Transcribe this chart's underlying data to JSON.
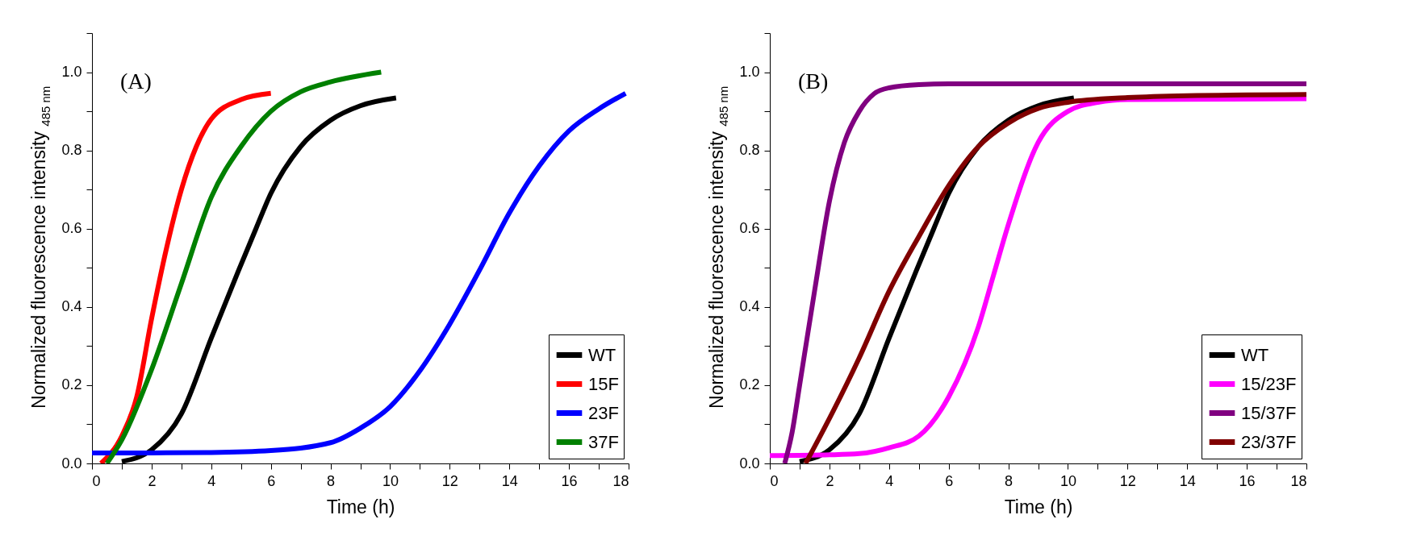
{
  "chart_data": [
    {
      "type": "line",
      "title": "(A)",
      "xlabel": "Time (h)",
      "ylabel": "Normalized fluorescence intensity $_{485 nm}$",
      "xlim": [
        0,
        18
      ],
      "ylim": [
        0,
        1.1
      ],
      "xticks": [
        0,
        {
          "value": 1,
          "label": null
        },
        2,
        {
          "value": 3,
          "label": null
        },
        4,
        {
          "value": 5,
          "label": null
        },
        6,
        {
          "value": 7,
          "label": null
        },
        8,
        {
          "value": 9,
          "label": null
        },
        10,
        {
          "value": 11,
          "label": null
        },
        12,
        {
          "value": 13,
          "label": null
        },
        14,
        {
          "value": 15,
          "label": null
        },
        16,
        {
          "value": 17,
          "label": null
        },
        18
      ],
      "yticks": [
        {
          "value": 0,
          "label": "0.0"
        },
        {
          "value": 0.1,
          "label": null
        },
        0.2,
        {
          "value": 0.3,
          "label": null
        },
        0.4,
        {
          "value": 0.5,
          "label": null
        },
        0.6,
        {
          "value": 0.7,
          "label": null
        },
        0.8,
        {
          "value": 0.9,
          "label": null
        },
        {
          "value": 1,
          "label": "1.0"
        },
        {
          "value": 1.1,
          "label": null
        }
      ],
      "grid": false,
      "legend": "bottom right",
      "marker": "none",
      "line_style": "solid",
      "series": [
        {
          "name": "WT",
          "color": "#000000",
          "x": [
            1,
            2,
            3,
            4,
            4.9,
            5.5,
            6,
            7,
            8,
            9,
            10.2
          ],
          "values": [
            0.005,
            0.035,
            0.127,
            0.32,
            0.49,
            0.6,
            0.69,
            0.81,
            0.877,
            0.914,
            0.934
          ]
        },
        {
          "name": "15F",
          "color": "#ff0000",
          "x": [
            0.3,
            1,
            1.5,
            2,
            2.5,
            3,
            3.5,
            4,
            5,
            6
          ],
          "values": [
            0,
            0.07,
            0.17,
            0.37,
            0.55,
            0.7,
            0.81,
            0.88,
            0.93,
            0.946
          ]
        },
        {
          "name": "23F",
          "color": "#0000ff",
          "x": [
            0,
            2,
            4,
            6,
            8,
            9,
            10,
            11,
            12,
            13,
            14,
            15,
            16,
            17,
            17.9
          ],
          "values": [
            0.027,
            0.027,
            0.028,
            0.033,
            0.053,
            0.09,
            0.145,
            0.237,
            0.356,
            0.494,
            0.64,
            0.76,
            0.85,
            0.906,
            0.946
          ]
        },
        {
          "name": "37F",
          "color": "#008000",
          "x": [
            0.5,
            1,
            2,
            3,
            4,
            5,
            6,
            7,
            8,
            9.7
          ],
          "values": [
            0,
            0.06,
            0.24,
            0.46,
            0.68,
            0.81,
            0.9,
            0.95,
            0.975,
            1.0
          ]
        }
      ]
    },
    {
      "type": "line",
      "title": "(B)",
      "xlabel": "Time (h)",
      "ylabel": "Normalized fluorescence intensity $_{485 nm}$",
      "xlim": [
        0,
        18
      ],
      "ylim": [
        0,
        1.1
      ],
      "xticks": [
        0,
        {
          "value": 1,
          "label": null
        },
        2,
        {
          "value": 3,
          "label": null
        },
        4,
        {
          "value": 5,
          "label": null
        },
        6,
        {
          "value": 7,
          "label": null
        },
        8,
        {
          "value": 9,
          "label": null
        },
        10,
        {
          "value": 11,
          "label": null
        },
        12,
        {
          "value": 13,
          "label": null
        },
        14,
        {
          "value": 15,
          "label": null
        },
        16,
        {
          "value": 17,
          "label": null
        },
        18
      ],
      "yticks": [
        {
          "value": 0,
          "label": "0.0"
        },
        {
          "value": 0.1,
          "label": null
        },
        0.2,
        {
          "value": 0.3,
          "label": null
        },
        0.4,
        {
          "value": 0.5,
          "label": null
        },
        0.6,
        {
          "value": 0.7,
          "label": null
        },
        0.8,
        {
          "value": 0.9,
          "label": null
        },
        {
          "value": 1,
          "label": "1.0"
        },
        {
          "value": 1.1,
          "label": null
        }
      ],
      "grid": false,
      "legend": "bottom right",
      "marker": "none",
      "line_style": "solid",
      "series": [
        {
          "name": "WT",
          "color": "#000000",
          "x": [
            1,
            2,
            3,
            4,
            4.9,
            5.5,
            6,
            7,
            8,
            9,
            10.2
          ],
          "values": [
            0.005,
            0.035,
            0.127,
            0.32,
            0.49,
            0.6,
            0.69,
            0.81,
            0.877,
            0.914,
            0.934
          ]
        },
        {
          "name": "15/23F",
          "color": "#ff00ff",
          "x": [
            0,
            2,
            3,
            4,
            5,
            6,
            7,
            7.5,
            8,
            9,
            10,
            11,
            12,
            18
          ],
          "values": [
            0.02,
            0.022,
            0.025,
            0.04,
            0.07,
            0.17,
            0.35,
            0.48,
            0.61,
            0.82,
            0.9,
            0.923,
            0.93,
            0.932
          ]
        },
        {
          "name": "15/37F",
          "color": "#800080",
          "x": [
            0.5,
            0.75,
            1,
            1.5,
            2,
            2.5,
            3,
            3.5,
            4,
            5,
            6,
            18
          ],
          "values": [
            0,
            0.08,
            0.2,
            0.44,
            0.67,
            0.82,
            0.9,
            0.945,
            0.96,
            0.968,
            0.97,
            0.97
          ]
        },
        {
          "name": "23/37F",
          "color": "#800000",
          "x": [
            1.2,
            2,
            3,
            4,
            5,
            6,
            7,
            8,
            9,
            10,
            12,
            14,
            18
          ],
          "values": [
            0,
            0.115,
            0.27,
            0.44,
            0.58,
            0.71,
            0.81,
            0.87,
            0.907,
            0.923,
            0.935,
            0.94,
            0.943
          ]
        }
      ]
    }
  ]
}
